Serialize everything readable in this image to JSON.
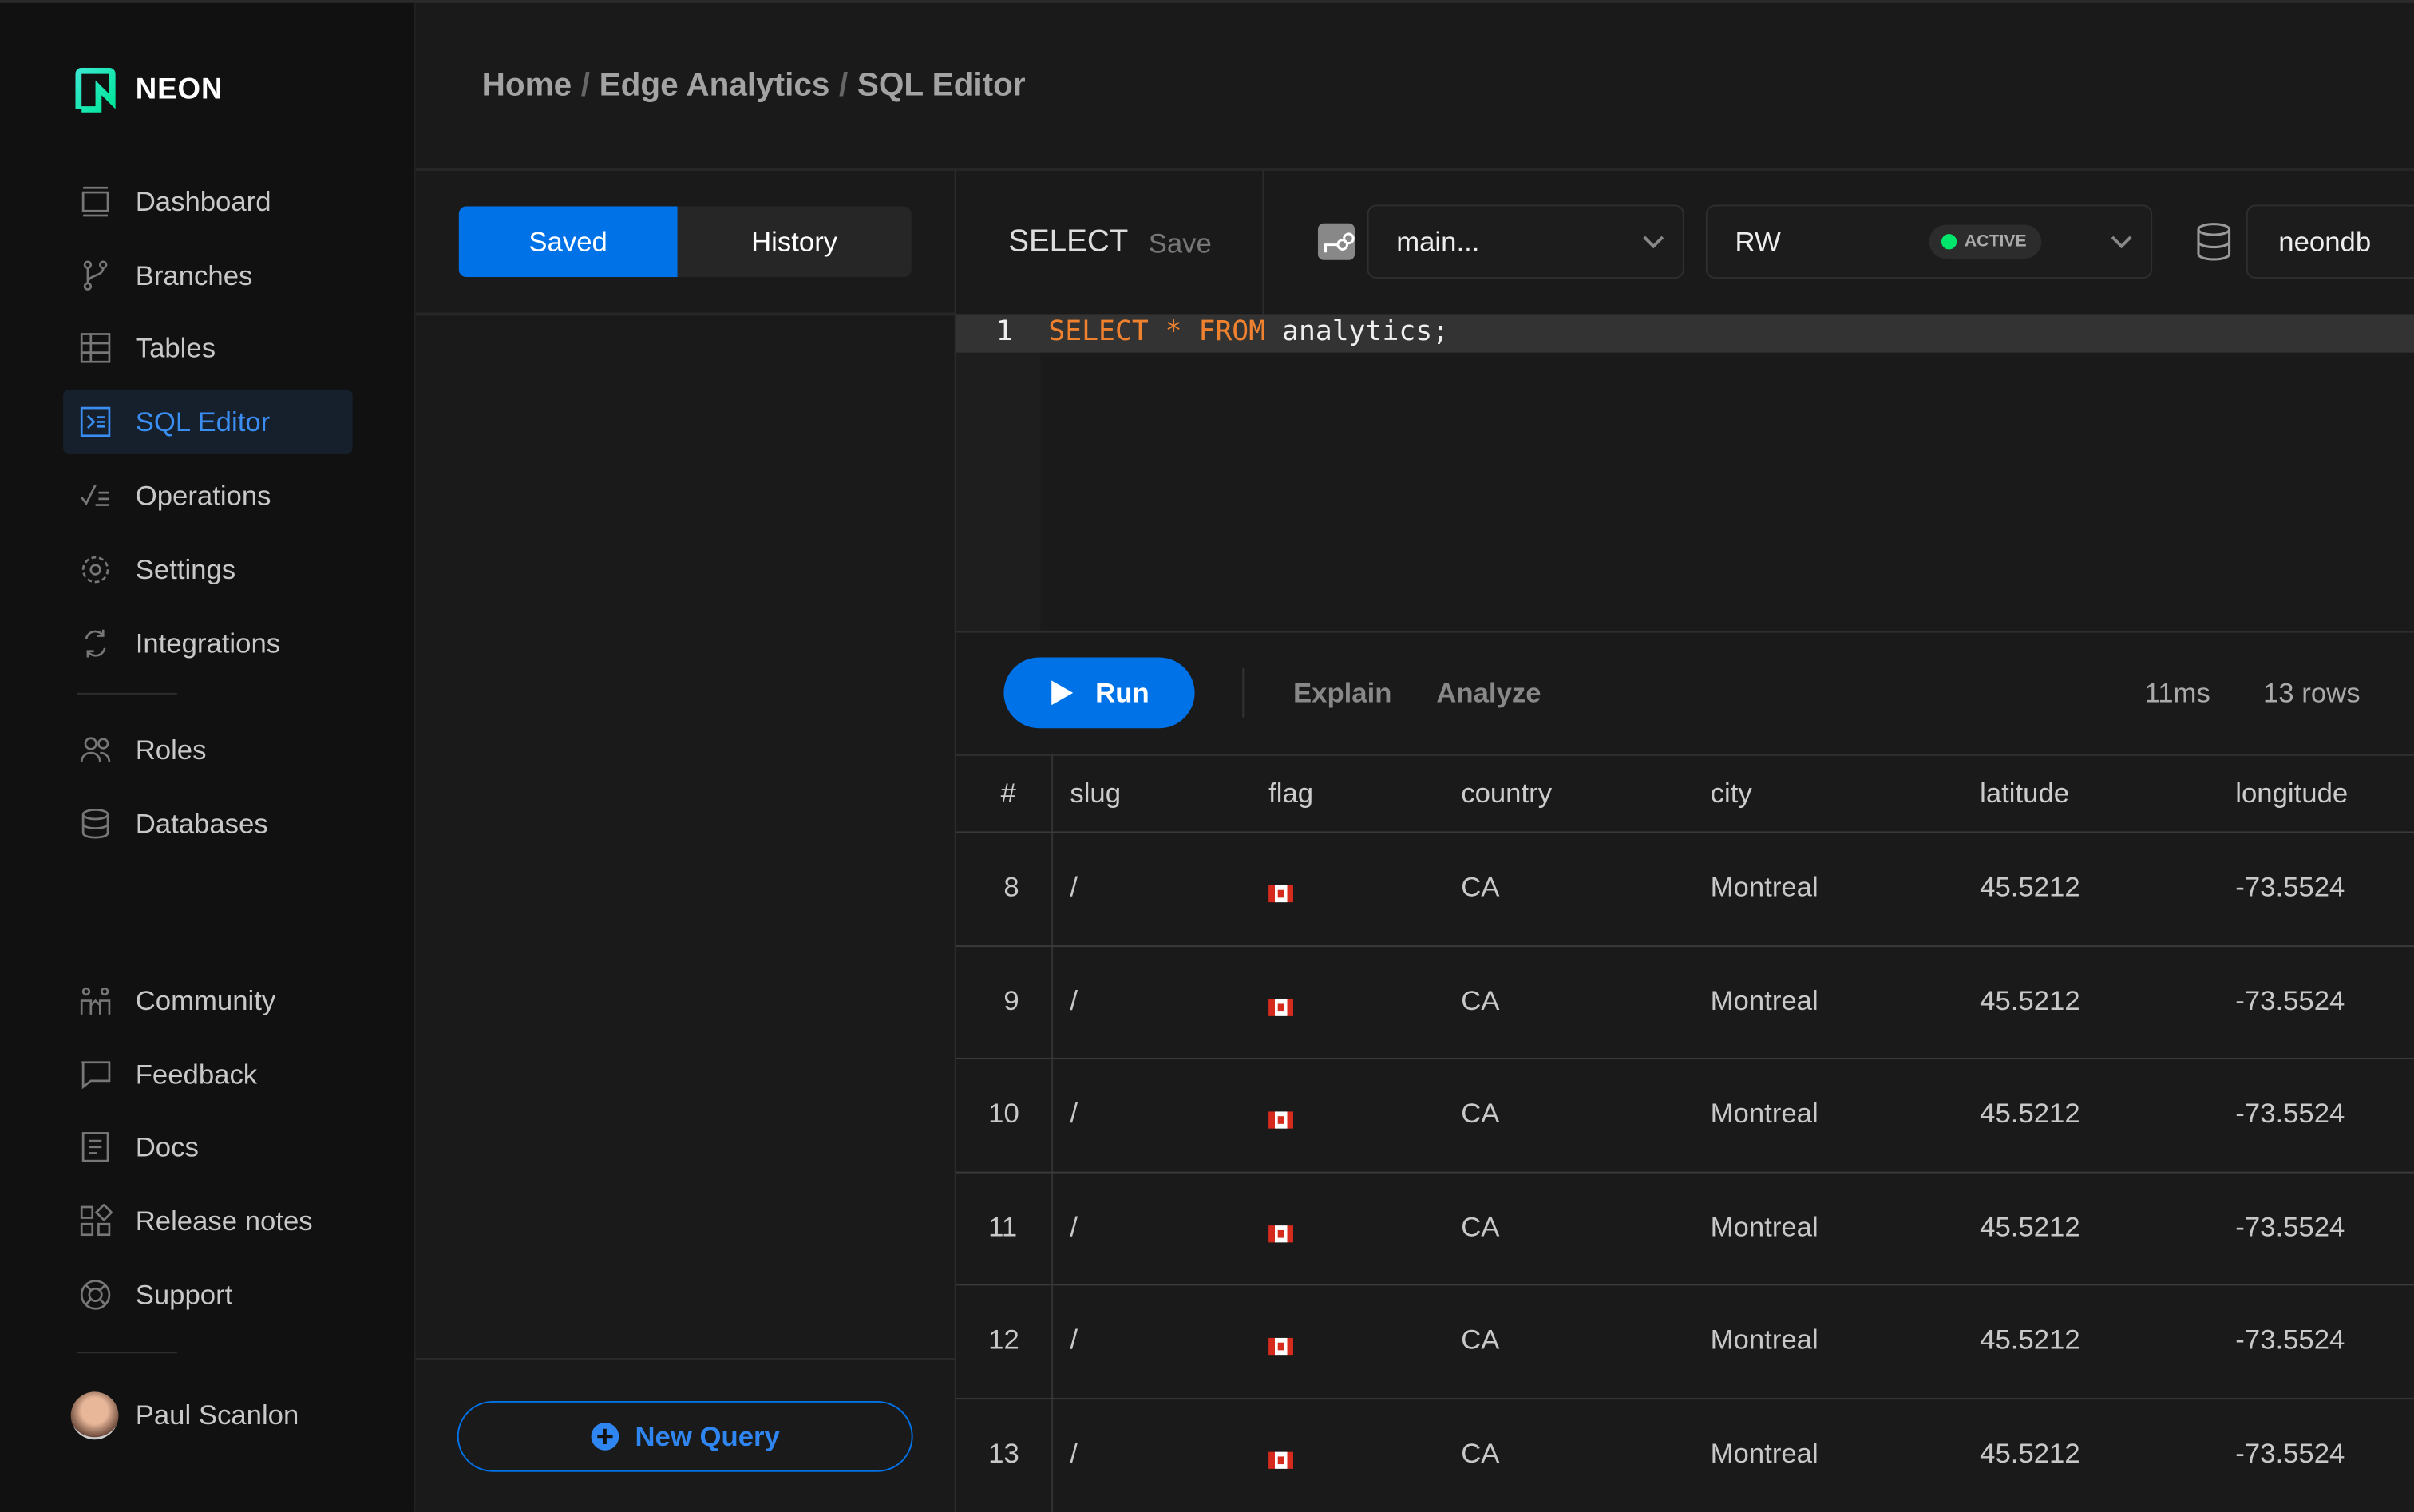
{
  "brand": {
    "name": "NEON",
    "accent": "#0072e8",
    "logo_colors": [
      "#00e699",
      "#39e8d0"
    ]
  },
  "breadcrumb": [
    "Home",
    "Edge Analytics",
    "SQL Editor"
  ],
  "sidebar": {
    "items": [
      {
        "label": "Dashboard",
        "icon": "dashboard-icon"
      },
      {
        "label": "Branches",
        "icon": "branch-icon"
      },
      {
        "label": "Tables",
        "icon": "table-icon"
      },
      {
        "label": "SQL Editor",
        "icon": "terminal-icon",
        "active": true
      },
      {
        "label": "Operations",
        "icon": "operations-icon"
      },
      {
        "label": "Settings",
        "icon": "gear-icon"
      },
      {
        "label": "Integrations",
        "icon": "integrations-icon"
      },
      {
        "label": "Roles",
        "icon": "users-icon"
      },
      {
        "label": "Databases",
        "icon": "database-icon"
      },
      {
        "label": "Community",
        "icon": "community-icon"
      },
      {
        "label": "Feedback",
        "icon": "chat-icon"
      },
      {
        "label": "Docs",
        "icon": "docs-icon"
      },
      {
        "label": "Release notes",
        "icon": "grid-icon"
      },
      {
        "label": "Support",
        "icon": "lifebuoy-icon"
      }
    ],
    "user": "Paul Scanlon"
  },
  "queries": {
    "tabs": [
      "Saved",
      "History"
    ],
    "active_tab": "Saved",
    "new_query": "New Query"
  },
  "editor": {
    "title": "SELECT",
    "save": "Save",
    "branch": "main...",
    "compute": "RW",
    "compute_status": "ACTIVE",
    "status_color": "#00e56b",
    "database": "neondb",
    "lines": [
      {
        "num": "1",
        "keyword1": "SELECT",
        "op": "*",
        "keyword2": "FROM",
        "rest": "analytics;"
      }
    ]
  },
  "actions": {
    "run": "Run",
    "explain": "Explain",
    "analyze": "Analyze",
    "time": "11ms",
    "rows": "13 rows"
  },
  "results": {
    "columns": [
      "#",
      "slug",
      "flag",
      "country",
      "city",
      "latitude",
      "longitude"
    ],
    "rows": [
      {
        "n": "8",
        "slug": "/",
        "flag": "canada-flag",
        "country": "CA",
        "city": "Montreal",
        "lat": "45.5212",
        "lon": "-73.5524"
      },
      {
        "n": "9",
        "slug": "/",
        "flag": "canada-flag",
        "country": "CA",
        "city": "Montreal",
        "lat": "45.5212",
        "lon": "-73.5524"
      },
      {
        "n": "10",
        "slug": "/",
        "flag": "canada-flag",
        "country": "CA",
        "city": "Montreal",
        "lat": "45.5212",
        "lon": "-73.5524"
      },
      {
        "n": "11",
        "slug": "/",
        "flag": "canada-flag",
        "country": "CA",
        "city": "Montreal",
        "lat": "45.5212",
        "lon": "-73.5524"
      },
      {
        "n": "12",
        "slug": "/",
        "flag": "canada-flag",
        "country": "CA",
        "city": "Montreal",
        "lat": "45.5212",
        "lon": "-73.5524"
      },
      {
        "n": "13",
        "slug": "/",
        "flag": "canada-flag",
        "country": "CA",
        "city": "Montreal",
        "lat": "45.5212",
        "lon": "-73.5524"
      }
    ]
  }
}
